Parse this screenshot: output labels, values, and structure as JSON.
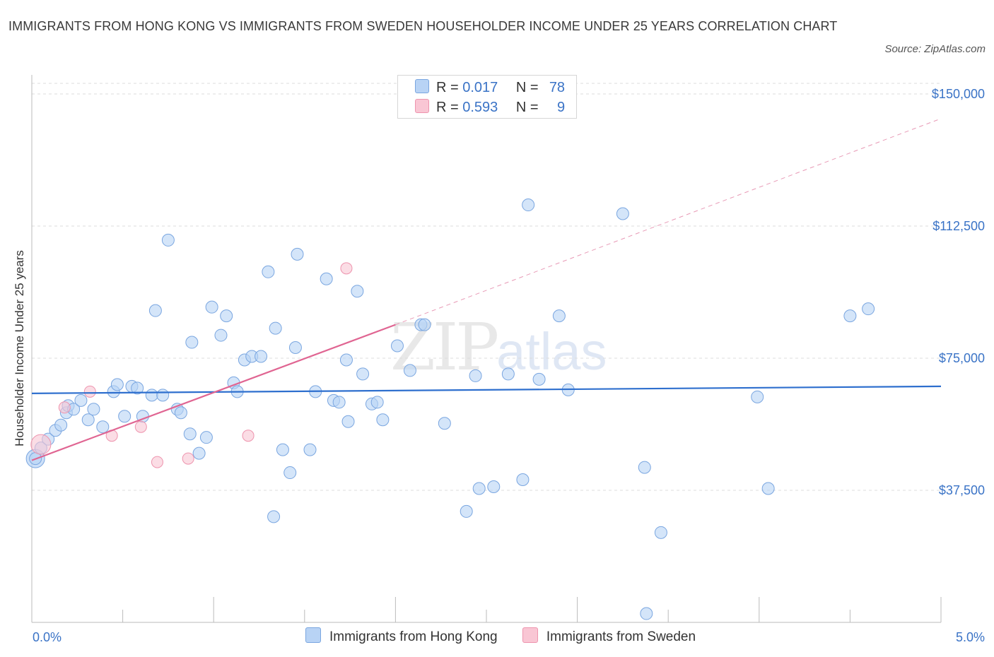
{
  "header": {
    "title": "IMMIGRANTS FROM HONG KONG VS IMMIGRANTS FROM SWEDEN HOUSEHOLDER INCOME UNDER 25 YEARS CORRELATION CHART",
    "source": "Source: ZipAtlas.com"
  },
  "watermark": {
    "zip": "ZIP",
    "atlas": "atlas"
  },
  "colors": {
    "blue_fill": "#b8d3f5",
    "blue_stroke": "#7aa6e0",
    "blue_line": "#2e6fce",
    "pink_fill": "#f9c6d4",
    "pink_stroke": "#ee94ae",
    "pink_line": "#e06592",
    "axis_text": "#3a73c6",
    "grid": "#dcdcdc"
  },
  "legend_top": [
    {
      "r_label": "R =",
      "r_value": "0.017",
      "n_label": "N =",
      "n_value": "78"
    },
    {
      "r_label": "R =",
      "r_value": "0.593",
      "n_label": "N =",
      "n_value": "9"
    }
  ],
  "legend_bottom": [
    "Immigrants from Hong Kong",
    "Immigrants from Sweden"
  ],
  "chart_data": {
    "type": "scatter",
    "title": "IMMIGRANTS FROM HONG KONG VS IMMIGRANTS FROM SWEDEN HOUSEHOLDER INCOME UNDER 25 YEARS CORRELATION CHART",
    "xlabel": "",
    "ylabel": "Householder Income Under 25 years",
    "xlim": [
      0,
      5
    ],
    "ylim": [
      0,
      153000
    ],
    "x_tick_labels": [
      "0.0%",
      "5.0%"
    ],
    "y_ticks": [
      37500,
      75000,
      112500,
      150000
    ],
    "y_tick_labels": [
      "$37,500",
      "$75,000",
      "$112,500",
      "$150,000"
    ],
    "grid": "horizontal dashed",
    "series": [
      {
        "name": "Immigrants from Hong Kong",
        "color": "#7aa6e0",
        "trend": {
          "x": [
            0,
            5
          ],
          "y": [
            65000,
            67000
          ],
          "style": "solid"
        },
        "points": [
          [
            0.02,
            46500
          ],
          [
            0.05,
            49500
          ],
          [
            0.09,
            52000
          ],
          [
            0.13,
            54500
          ],
          [
            0.16,
            56000
          ],
          [
            0.19,
            59500
          ],
          [
            0.2,
            61500
          ],
          [
            0.23,
            60500
          ],
          [
            0.27,
            63000
          ],
          [
            0.31,
            57500
          ],
          [
            0.34,
            60500
          ],
          [
            0.39,
            55500
          ],
          [
            0.45,
            65500
          ],
          [
            0.47,
            67500
          ],
          [
            0.51,
            58500
          ],
          [
            0.55,
            67000
          ],
          [
            0.58,
            66500
          ],
          [
            0.61,
            58500
          ],
          [
            0.66,
            64500
          ],
          [
            0.68,
            88500
          ],
          [
            0.72,
            64500
          ],
          [
            0.75,
            108500
          ],
          [
            0.8,
            60500
          ],
          [
            0.82,
            59500
          ],
          [
            0.87,
            53500
          ],
          [
            0.88,
            79500
          ],
          [
            0.92,
            48000
          ],
          [
            0.96,
            52500
          ],
          [
            0.99,
            89500
          ],
          [
            1.04,
            81500
          ],
          [
            1.07,
            87000
          ],
          [
            1.11,
            68000
          ],
          [
            1.13,
            65500
          ],
          [
            1.17,
            74500
          ],
          [
            1.21,
            75500
          ],
          [
            1.26,
            75500
          ],
          [
            1.3,
            99500
          ],
          [
            1.33,
            30000
          ],
          [
            1.34,
            83500
          ],
          [
            1.38,
            49000
          ],
          [
            1.42,
            42500
          ],
          [
            1.45,
            78000
          ],
          [
            1.46,
            104500
          ],
          [
            1.53,
            49000
          ],
          [
            1.56,
            65500
          ],
          [
            1.62,
            97500
          ],
          [
            1.66,
            63000
          ],
          [
            1.69,
            62500
          ],
          [
            1.73,
            74500
          ],
          [
            1.74,
            57000
          ],
          [
            1.79,
            94000
          ],
          [
            1.82,
            70500
          ],
          [
            1.87,
            62000
          ],
          [
            1.9,
            62500
          ],
          [
            1.93,
            57500
          ],
          [
            2.01,
            78500
          ],
          [
            2.08,
            71500
          ],
          [
            2.14,
            84500
          ],
          [
            2.16,
            84500
          ],
          [
            2.27,
            56500
          ],
          [
            2.39,
            31500
          ],
          [
            2.44,
            70000
          ],
          [
            2.46,
            38000
          ],
          [
            2.54,
            38500
          ],
          [
            2.62,
            70500
          ],
          [
            2.7,
            40500
          ],
          [
            2.73,
            118500
          ],
          [
            2.79,
            69000
          ],
          [
            2.9,
            87000
          ],
          [
            2.95,
            66000
          ],
          [
            3.25,
            116000
          ],
          [
            3.37,
            44000
          ],
          [
            3.46,
            25500
          ],
          [
            3.38,
            2500
          ],
          [
            3.99,
            64000
          ],
          [
            4.05,
            38000
          ],
          [
            4.5,
            87000
          ],
          [
            4.6,
            89000
          ]
        ]
      },
      {
        "name": "Immigrants from Sweden",
        "color": "#ee94ae",
        "trend": {
          "x": [
            0,
            2,
            5
          ],
          "y": [
            46000,
            84500,
            143000
          ],
          "style": "solid to x=2, dashed beyond"
        },
        "points": [
          [
            0.05,
            50500
          ],
          [
            0.18,
            61000
          ],
          [
            0.32,
            65500
          ],
          [
            0.44,
            53000
          ],
          [
            0.6,
            55500
          ],
          [
            0.69,
            45500
          ],
          [
            0.86,
            46500
          ],
          [
            1.19,
            53000
          ],
          [
            1.73,
            100500
          ]
        ]
      }
    ]
  }
}
